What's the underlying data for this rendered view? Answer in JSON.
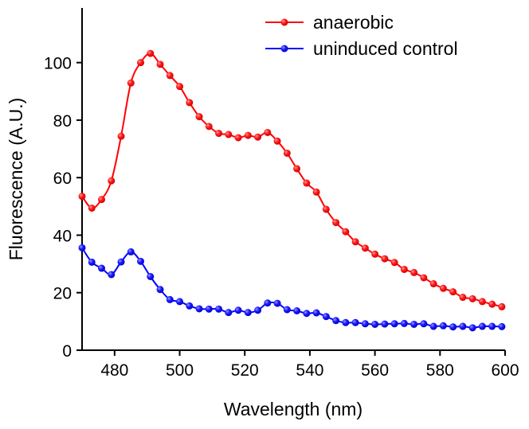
{
  "chart_data": {
    "type": "line",
    "title": "",
    "xlabel": "Wavelength (nm)",
    "ylabel": "Fluorescence (A.U.)",
    "xlim": [
      470,
      600
    ],
    "ylim": [
      0,
      119
    ],
    "xticks": [
      480,
      500,
      520,
      540,
      560,
      580,
      600
    ],
    "yticks": [
      0,
      20,
      40,
      60,
      80,
      100
    ],
    "grid": false,
    "legend": "top-right",
    "x": [
      470,
      473,
      476,
      479,
      482,
      485,
      488,
      491,
      494,
      497,
      500,
      503,
      506,
      509,
      512,
      515,
      518,
      521,
      524,
      527,
      530,
      533,
      536,
      539,
      542,
      545,
      548,
      551,
      554,
      557,
      560,
      563,
      566,
      569,
      572,
      575,
      578,
      581,
      584,
      587,
      590,
      593,
      596,
      599
    ],
    "series": [
      {
        "name": "anaerobic",
        "color": "#ff0000",
        "values": [
          53.5,
          49.4,
          52.4,
          58.9,
          74.4,
          92.9,
          100,
          103.2,
          99.4,
          95.5,
          91.7,
          86.1,
          81.2,
          77.8,
          75.4,
          75,
          73.9,
          74.7,
          74.1,
          75.7,
          72.7,
          68.5,
          63.1,
          58.1,
          55,
          49,
          44.4,
          41.2,
          37.7,
          35.5,
          33.4,
          31.8,
          30.5,
          28.1,
          27,
          25.2,
          23.1,
          21.5,
          20.3,
          18.4,
          17.9,
          16.9,
          16,
          15.1
        ]
      },
      {
        "name": "uninduced control",
        "color": "#0000ff",
        "values": [
          35.6,
          30.6,
          28.5,
          26.3,
          30.7,
          34.2,
          30.9,
          25.6,
          21.1,
          17.6,
          16.9,
          15.4,
          14.4,
          14.3,
          14.3,
          13.1,
          13.9,
          13.1,
          13.9,
          16.4,
          16.3,
          14.1,
          13.7,
          12.8,
          13,
          11.7,
          10.3,
          9.6,
          9.6,
          9.2,
          9,
          9.1,
          9.2,
          9.3,
          9,
          9.2,
          8.3,
          8.5,
          8.1,
          8.3,
          7.8,
          8.3,
          8.3,
          8.2
        ]
      }
    ]
  }
}
